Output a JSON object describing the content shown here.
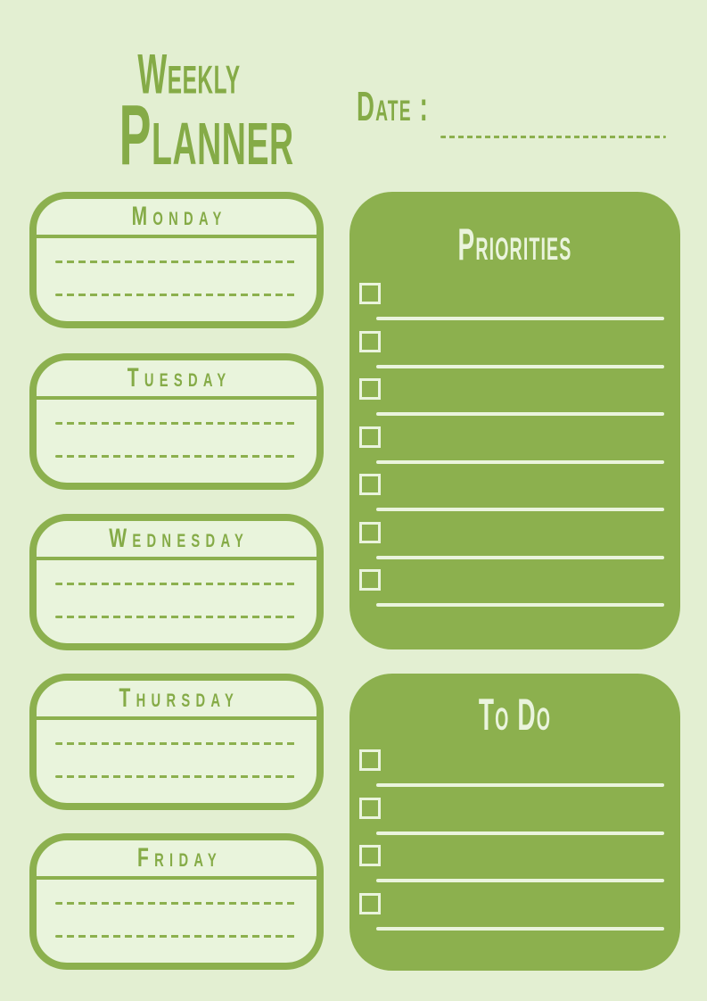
{
  "page": {
    "title": {
      "line1": "Weekly",
      "line2": "Planner"
    },
    "date": {
      "label": "Date :",
      "value": ""
    }
  },
  "colors": {
    "page_background": "#e3efd2",
    "accent_green": "#8cb04e",
    "text_green": "#85ab47",
    "day_card_fill": "#e9f4dc",
    "on_green_light": "#eaf4dd"
  },
  "week_days": [
    {
      "label": "Monday",
      "writing_lines": 2
    },
    {
      "label": "Tuesday",
      "writing_lines": 2
    },
    {
      "label": "Wednesday",
      "writing_lines": 2
    },
    {
      "label": "Thursday",
      "writing_lines": 2
    },
    {
      "label": "Friday",
      "writing_lines": 2
    }
  ],
  "panels": {
    "priorities": {
      "title": "Priorities",
      "item_count": 7
    },
    "todo": {
      "title": "To Do",
      "item_count": 4
    }
  }
}
